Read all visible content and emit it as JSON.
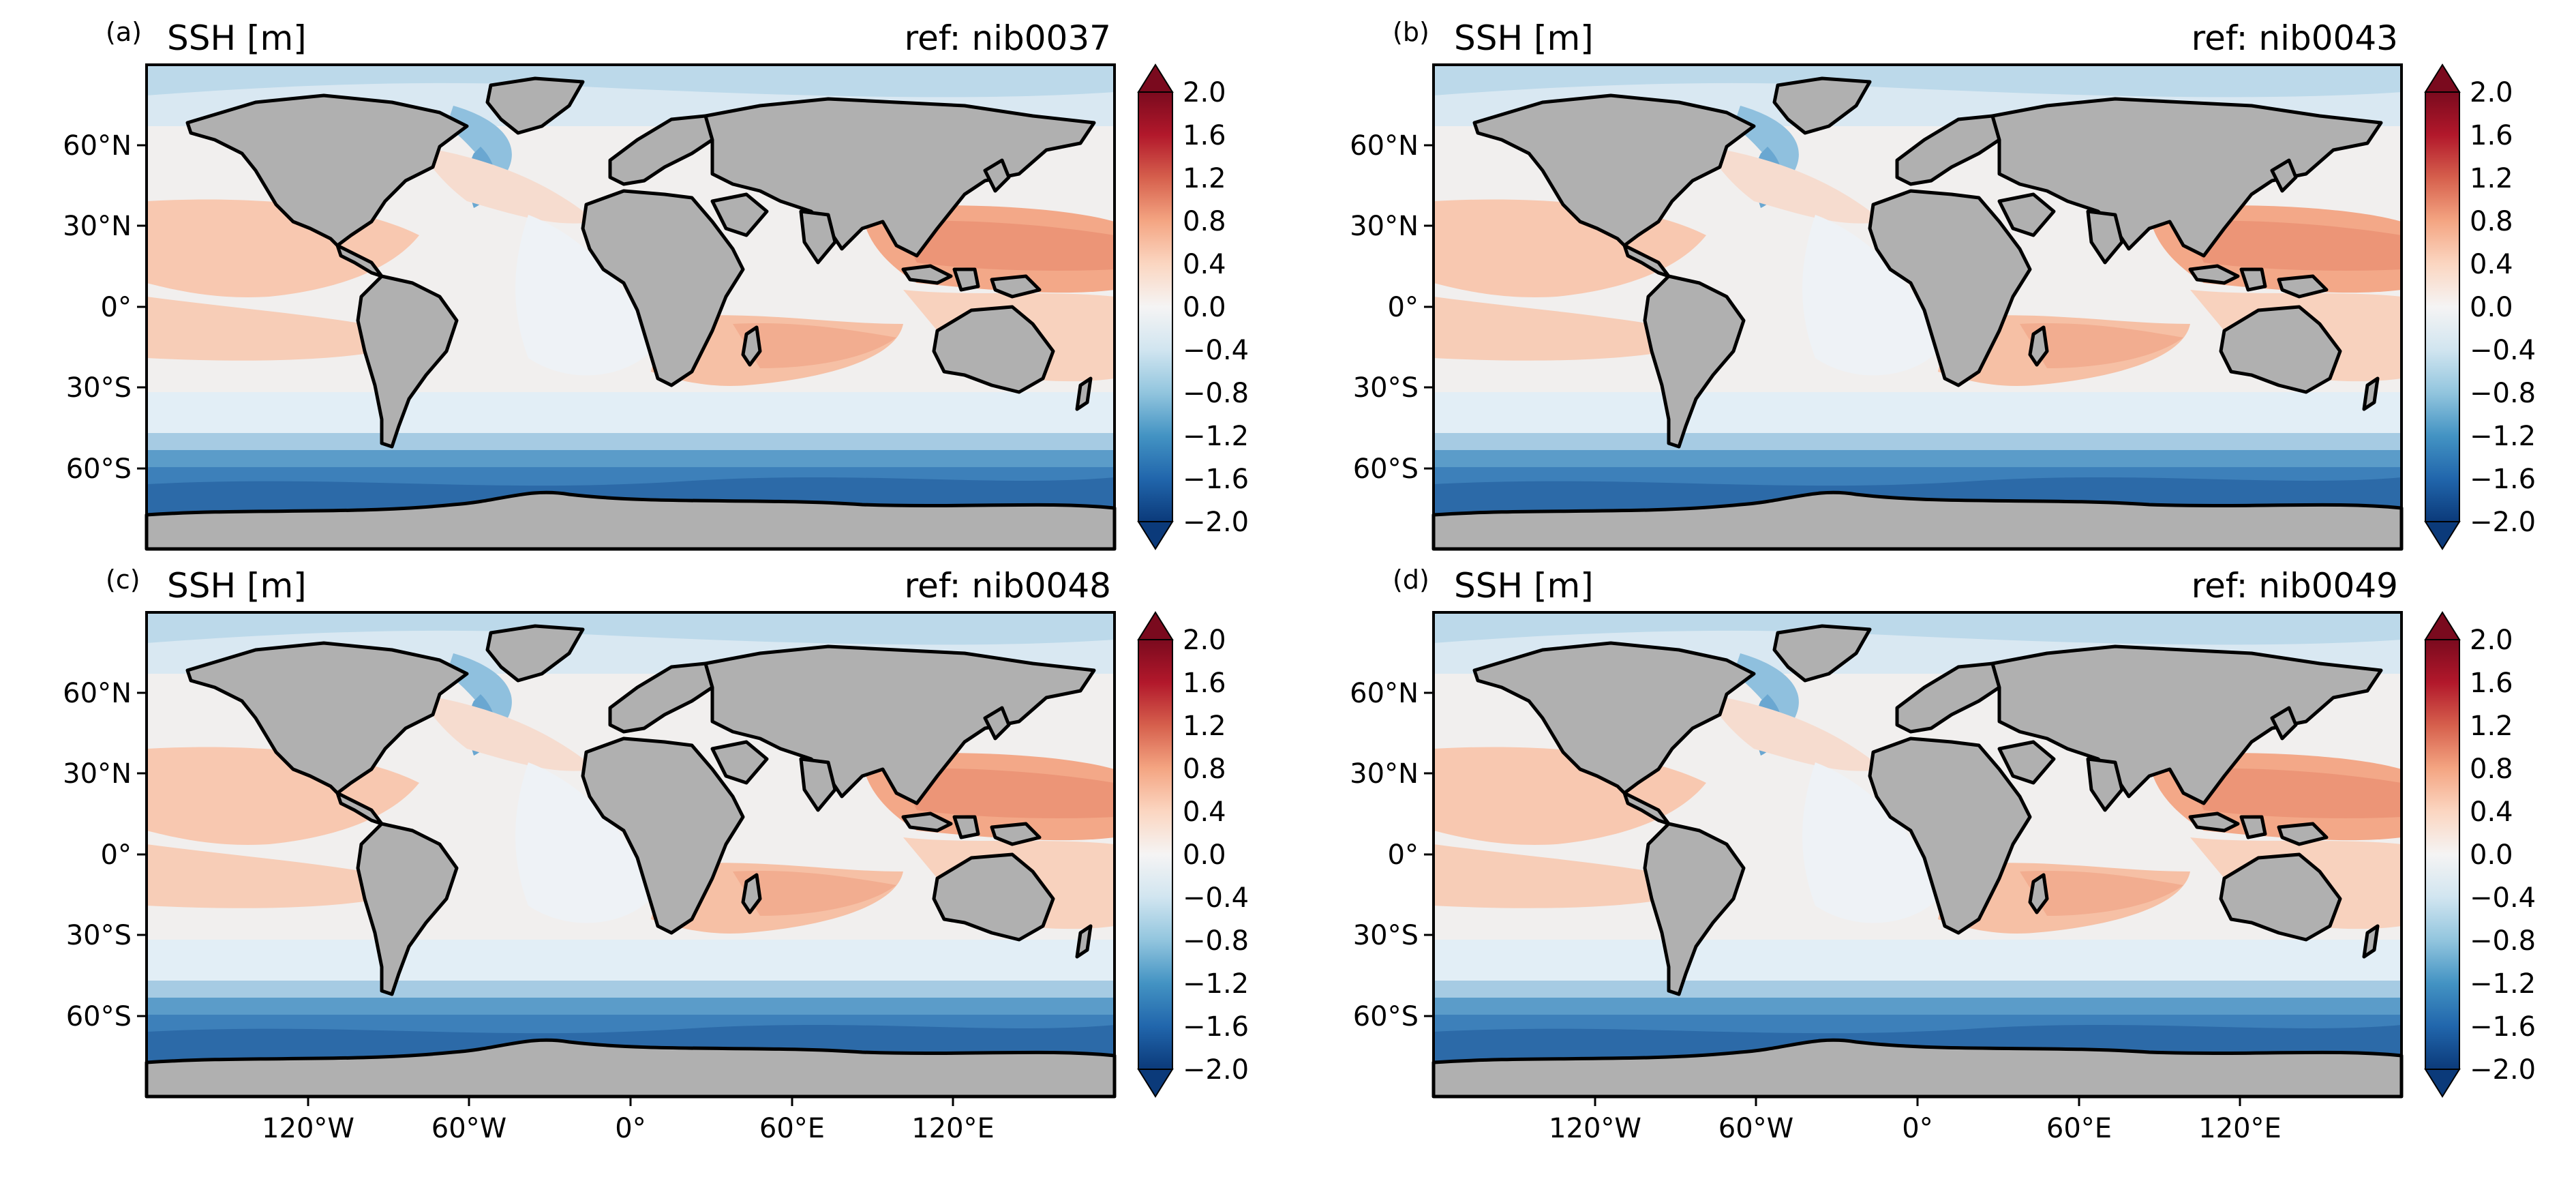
{
  "figure": {
    "panels": [
      {
        "letter": "(a)",
        "title": "SSH [m]",
        "ref": "ref: nib0037"
      },
      {
        "letter": "(b)",
        "title": "SSH [m]",
        "ref": "ref: nib0043"
      },
      {
        "letter": "(c)",
        "title": "SSH [m]",
        "ref": "ref: nib0048"
      },
      {
        "letter": "(d)",
        "title": "SSH [m]",
        "ref": "ref: nib0049"
      }
    ],
    "lat_ticks": [
      "60°N",
      "30°N",
      "0°",
      "30°S",
      "60°S"
    ],
    "lon_ticks": [
      "120°W",
      "60°W",
      "0°",
      "60°E",
      "120°E"
    ],
    "colorbar_ticks": [
      "2.0",
      "1.6",
      "1.2",
      "0.8",
      "0.4",
      "0.0",
      "−0.4",
      "−0.8",
      "−1.2",
      "−1.6",
      "−2.0"
    ],
    "colors": {
      "land": "#b0b0b0",
      "coastline": "#000000",
      "colormap": "RdBu_r",
      "ocean_min": "#0b3a7a",
      "ocean_neutral": "#f5f4f4",
      "ocean_max": "#7a0a1e"
    }
  }
}
